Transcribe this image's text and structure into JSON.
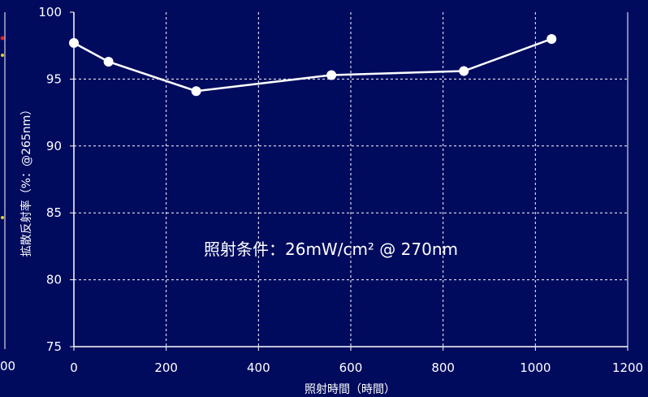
{
  "chart_data": {
    "type": "line",
    "xlabel": "照射時間（時間）",
    "ylabel": "拡散反射率（%：@265nm）",
    "xlim": [
      0,
      1200
    ],
    "ylim": [
      75,
      100
    ],
    "x_ticks": [
      "0",
      "200",
      "400",
      "600",
      "800",
      "1000",
      "1200"
    ],
    "y_ticks": [
      "75",
      "80",
      "85",
      "90",
      "95",
      "100"
    ],
    "grid": true,
    "annotation": "照射条件：26mW/cm² @ 270nm",
    "left_partial_tick": "00",
    "series": [
      {
        "x": [
          0,
          75,
          265,
          558,
          845,
          1035
        ],
        "y": [
          97.7,
          96.3,
          94.1,
          95.3,
          95.6,
          98.0
        ]
      }
    ],
    "colors": {
      "background": "#000b5e",
      "line": "#ffffff",
      "grid": "#ffffff"
    }
  }
}
